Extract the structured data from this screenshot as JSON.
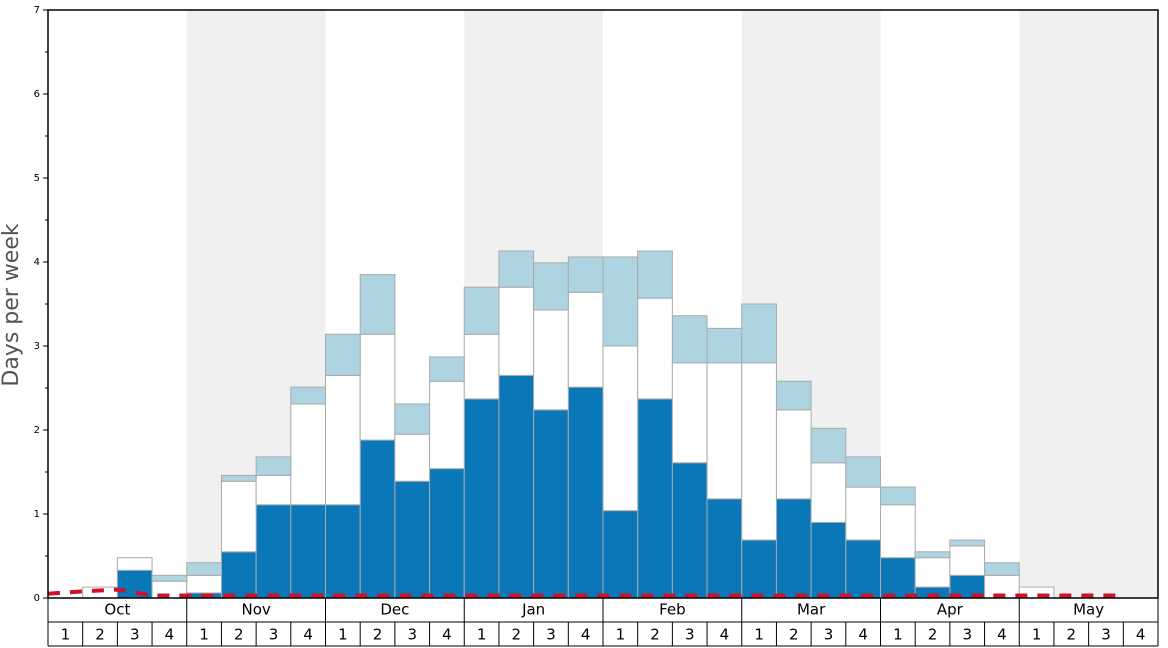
{
  "chart_data": {
    "type": "bar",
    "stacked": true,
    "y_label": "Days per week",
    "months": [
      "Oct",
      "Nov",
      "Dec",
      "Jan",
      "Feb",
      "Mar",
      "Apr",
      "May"
    ],
    "categories": [
      "1",
      "2",
      "3",
      "4",
      "1",
      "2",
      "3",
      "4",
      "1",
      "2",
      "3",
      "4",
      "1",
      "2",
      "3",
      "4",
      "1",
      "2",
      "3",
      "4",
      "1",
      "2",
      "3",
      "4",
      "1",
      "2",
      "3",
      "4",
      "1",
      "2",
      "3",
      "4"
    ],
    "ylim": [
      0,
      7
    ],
    "yticks": [
      0,
      1,
      2,
      3,
      4,
      5,
      6,
      7
    ],
    "series": [
      {
        "color": "#0a77b8",
        "values": [
          0,
          0,
          0.33,
          0,
          0.06,
          0.55,
          1.11,
          1.11,
          1.11,
          1.88,
          1.39,
          1.54,
          2.37,
          2.65,
          2.24,
          2.51,
          1.04,
          2.37,
          1.61,
          1.18,
          0.69,
          1.18,
          0.9,
          0.69,
          0.48,
          0.13,
          0.27,
          0,
          0,
          0,
          0,
          0
        ]
      },
      {
        "color": "#ffffff",
        "values": [
          0,
          0.13,
          0.15,
          0.2,
          0.21,
          0.84,
          0.35,
          1.2,
          1.54,
          1.26,
          0.56,
          1.04,
          0.77,
          1.05,
          1.19,
          1.13,
          1.96,
          1.2,
          1.19,
          1.62,
          2.11,
          1.06,
          0.71,
          0.63,
          0.63,
          0.35,
          0.35,
          0.27,
          0.13,
          0,
          0,
          0
        ]
      },
      {
        "color": "#aed4e1",
        "values": [
          0,
          0,
          0,
          0.07,
          0.15,
          0.07,
          0.22,
          0.2,
          0.49,
          0.71,
          0.36,
          0.29,
          0.56,
          0.43,
          0.56,
          0.42,
          1.06,
          0.56,
          0.56,
          0.41,
          0.7,
          0.34,
          0.41,
          0.36,
          0.21,
          0.07,
          0.07,
          0.15,
          0,
          0,
          0,
          0
        ]
      },
      {
        "type": "line",
        "color": "#d0112b",
        "dashed": true,
        "values": [
          0.05,
          0.08,
          0.1,
          0.03,
          0.03,
          0.03,
          0.03,
          0.03,
          0.03,
          0.03,
          0.03,
          0.03,
          0.03,
          0.03,
          0.03,
          0.03,
          0.03,
          0.03,
          0.03,
          0.03,
          0.03,
          0.03,
          0.03,
          0.03,
          0.03,
          0.03,
          0.03,
          0.03,
          0.03,
          0.03,
          0.03,
          0.03
        ]
      }
    ],
    "shade_alternate_months": true,
    "shade_color": "#f0f0f0"
  }
}
